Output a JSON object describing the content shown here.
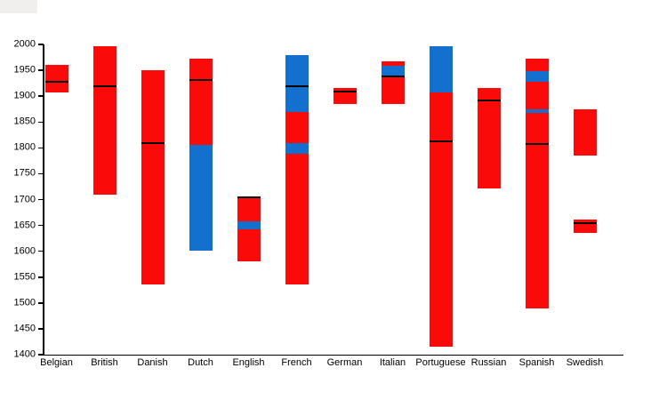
{
  "chart_data": {
    "type": "bar",
    "subtype": "floating-range-bars",
    "title": "",
    "xlabel": "",
    "ylabel": "",
    "grid": false,
    "legend": null,
    "colors": {
      "red": "#fb0a0a",
      "blue": "#1470ce",
      "marker": "#000000",
      "axis": "#000000"
    },
    "y_axis": {
      "min": 1400,
      "max": 2000,
      "tick_step": 50,
      "tick_labels": [
        "1400",
        "1450",
        "1500",
        "1550",
        "1600",
        "1650",
        "1700",
        "1750",
        "1800",
        "1850",
        "1900",
        "1950",
        "2000"
      ]
    },
    "categories": [
      "Belgian",
      "British",
      "Danish",
      "Dutch",
      "English",
      "French",
      "German",
      "Italian",
      "Portuguese",
      "Russian",
      "Spanish",
      "Swedish"
    ],
    "bars": [
      {
        "category": "Belgian",
        "segments": [
          {
            "from": 1908,
            "to": 1960,
            "color": "red"
          }
        ],
        "marker": 1928
      },
      {
        "category": "British",
        "segments": [
          {
            "from": 1709,
            "to": 1996,
            "color": "red"
          }
        ],
        "marker": 1919
      },
      {
        "category": "Danish",
        "segments": [
          {
            "from": 1535,
            "to": 1950,
            "color": "red"
          }
        ],
        "marker": 1809
      },
      {
        "category": "Dutch",
        "segments": [
          {
            "from": 1601,
            "to": 1805,
            "color": "blue"
          },
          {
            "from": 1805,
            "to": 1973,
            "color": "red"
          }
        ],
        "marker": 1931
      },
      {
        "category": "English",
        "segments": [
          {
            "from": 1580,
            "to": 1643,
            "color": "red"
          },
          {
            "from": 1643,
            "to": 1658,
            "color": "blue"
          },
          {
            "from": 1658,
            "to": 1706,
            "color": "red"
          }
        ],
        "marker": 1704
      },
      {
        "category": "French",
        "segments": [
          {
            "from": 1535,
            "to": 1789,
            "color": "red"
          },
          {
            "from": 1789,
            "to": 1810,
            "color": "blue"
          },
          {
            "from": 1810,
            "to": 1869,
            "color": "red"
          },
          {
            "from": 1869,
            "to": 1980,
            "color": "blue"
          }
        ],
        "marker": 1920
      },
      {
        "category": "German",
        "segments": [
          {
            "from": 1885,
            "to": 1916,
            "color": "red"
          }
        ],
        "marker": 1909
      },
      {
        "category": "Italian",
        "segments": [
          {
            "from": 1884,
            "to": 1938,
            "color": "red"
          },
          {
            "from": 1938,
            "to": 1959,
            "color": "blue"
          },
          {
            "from": 1959,
            "to": 1967,
            "color": "red"
          }
        ],
        "marker": 1938
      },
      {
        "category": "Portuguese",
        "segments": [
          {
            "from": 1415,
            "to": 1908,
            "color": "red"
          },
          {
            "from": 1908,
            "to": 1997,
            "color": "blue"
          }
        ],
        "marker": 1812
      },
      {
        "category": "Russian",
        "segments": [
          {
            "from": 1721,
            "to": 1915,
            "color": "red"
          }
        ],
        "marker": 1892
      },
      {
        "category": "Spanish",
        "segments": [
          {
            "from": 1490,
            "to": 1868,
            "color": "red"
          },
          {
            "from": 1868,
            "to": 1874,
            "color": "blue"
          },
          {
            "from": 1874,
            "to": 1928,
            "color": "red"
          },
          {
            "from": 1928,
            "to": 1948,
            "color": "blue"
          },
          {
            "from": 1948,
            "to": 1973,
            "color": "red"
          }
        ],
        "marker": 1808
      },
      {
        "category": "Swedish",
        "segments": [
          {
            "from": 1636,
            "to": 1662,
            "color": "red"
          },
          {
            "from": 1785,
            "to": 1875,
            "color": "red"
          }
        ],
        "marker": 1655
      }
    ]
  }
}
